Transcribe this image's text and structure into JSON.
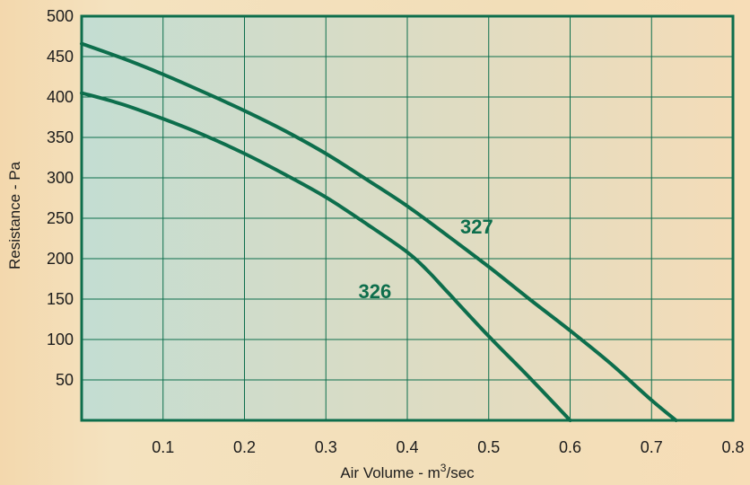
{
  "chart_data": {
    "type": "line",
    "title": "",
    "xlabel": "Air Volume - m",
    "xlabel_sup": "3",
    "xlabel_suffix": "/sec",
    "ylabel": "Resistance - Pa",
    "xlim": [
      0,
      0.8
    ],
    "ylim": [
      0,
      500
    ],
    "x_ticks": [
      "0.1",
      "0.2",
      "0.3",
      "0.4",
      "0.5",
      "0.6",
      "0.7",
      "0.8"
    ],
    "y_ticks": [
      "50",
      "100",
      "150",
      "200",
      "250",
      "300",
      "350",
      "400",
      "450",
      "500"
    ],
    "x_tick_values": [
      0.1,
      0.2,
      0.3,
      0.4,
      0.5,
      0.6,
      0.7,
      0.8
    ],
    "y_tick_values": [
      50,
      100,
      150,
      200,
      250,
      300,
      350,
      400,
      450,
      500
    ],
    "grid": true,
    "series": [
      {
        "name": "327",
        "x": [
          0,
          0.05,
          0.1,
          0.15,
          0.2,
          0.25,
          0.3,
          0.35,
          0.4,
          0.45,
          0.5,
          0.55,
          0.6,
          0.65,
          0.7,
          0.73
        ],
        "y": [
          466,
          448,
          428,
          406,
          383,
          358,
          330,
          298,
          265,
          228,
          190,
          150,
          111,
          70,
          25,
          0
        ]
      },
      {
        "name": "326",
        "x": [
          0,
          0.05,
          0.1,
          0.15,
          0.2,
          0.25,
          0.3,
          0.35,
          0.4,
          0.425,
          0.45,
          0.5,
          0.55,
          0.6
        ],
        "y": [
          405,
          391,
          373,
          353,
          330,
          304,
          276,
          243,
          208,
          185,
          158,
          104,
          53,
          0
        ]
      }
    ],
    "annotations": [
      {
        "text": "327",
        "x": 0.465,
        "y": 240
      },
      {
        "text": "326",
        "x": 0.34,
        "y": 160
      }
    ],
    "colors": {
      "line": "#0d6e4c",
      "frame": "#0d6e4c",
      "grid": "#0d6e4c",
      "text": "#1c1c1c"
    }
  }
}
